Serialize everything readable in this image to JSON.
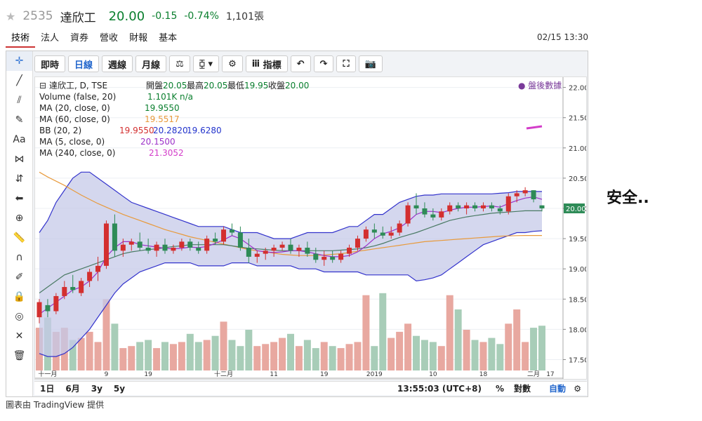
{
  "header": {
    "code": "2535",
    "name": "達欣工",
    "price": "20.00",
    "change": "-0.15",
    "pct": "-0.74%",
    "volume": "1,101張"
  },
  "tabs": [
    "技術",
    "法人",
    "資券",
    "營收",
    "財報",
    "基本"
  ],
  "datetime": "02/15 13:30",
  "toolbar": {
    "btn1": "即時",
    "btn2": "日線",
    "btn3": "週線",
    "btn4": "月線",
    "btn5": "指標"
  },
  "legend": {
    "main": "達欣工, D, TSE",
    "ohlc_open_label": "開盤",
    "ohlc_open": "20.05",
    "ohlc_high_label": "最高",
    "ohlc_high": "20.05",
    "ohlc_low_label": "最低",
    "ohlc_low": "19.95",
    "ohlc_close_label": "收盤",
    "ohlc_close": "20.00",
    "vol_label": "Volume (false, 20)",
    "vol_val": "1.101K n/a",
    "ma20_label": "MA (20, close, 0)",
    "ma20_val": "19.9550",
    "ma60_label": "MA (60, close, 0)",
    "ma60_val": "19.5517",
    "bb_label": "BB (20, 2)",
    "bb_val1": "19.9550",
    "bb_val2": "20.2820",
    "bb_val3": "19.6280",
    "ma5_label": "MA (5, close, 0)",
    "ma5_val": "20.1500",
    "ma240_label": "MA (240, close, 0)",
    "ma240_val": "21.3052",
    "afterhours": "● 盤後數據"
  },
  "bottom": {
    "r1": "1日",
    "r2": "6月",
    "r3": "3y",
    "r4": "5y",
    "time": "13:55:03 (UTC+8)",
    "pct": "%",
    "log": "對數",
    "auto": "自動"
  },
  "credit": "圖表由 TradingView 提供",
  "side_text": "安全..",
  "colors": {
    "up": "#d32f2f",
    "down": "#2e8b57",
    "bb_fill": "#c5c9e8",
    "bb_line": "#3333cc",
    "ma20": "#4a7a64",
    "ma60": "#e89a3c",
    "ma5": "#9b30c8"
  },
  "chart_data": {
    "type": "candlestick",
    "price_axis": {
      "min": 17.25,
      "max": 22.1,
      "ticks": [
        22.0,
        21.5,
        21.0,
        20.5,
        20.0,
        19.5,
        19.0,
        18.5,
        18.0,
        17.5
      ]
    },
    "last_price": "20.00",
    "x_labels": [
      "十一月",
      "9",
      "19",
      "十二月",
      "11",
      "19",
      "2019",
      "10",
      "18",
      "二月",
      "17"
    ],
    "candles": [
      [
        18.2,
        18.5,
        18.1,
        18.45
      ],
      [
        18.4,
        18.5,
        18.2,
        18.3
      ],
      [
        18.3,
        18.6,
        18.25,
        18.55
      ],
      [
        18.55,
        18.8,
        18.5,
        18.7
      ],
      [
        18.7,
        18.9,
        18.6,
        18.65
      ],
      [
        18.6,
        18.85,
        18.55,
        18.8
      ],
      [
        18.8,
        19.0,
        18.7,
        18.95
      ],
      [
        18.95,
        19.2,
        18.8,
        19.05
      ],
      [
        19.05,
        19.8,
        19.0,
        19.75
      ],
      [
        19.75,
        19.9,
        19.2,
        19.3
      ],
      [
        19.3,
        19.5,
        19.2,
        19.4
      ],
      [
        19.4,
        19.5,
        19.3,
        19.45
      ],
      [
        19.45,
        19.6,
        19.3,
        19.35
      ],
      [
        19.35,
        19.5,
        19.25,
        19.3
      ],
      [
        19.3,
        19.45,
        19.2,
        19.4
      ],
      [
        19.4,
        19.5,
        19.25,
        19.3
      ],
      [
        19.3,
        19.4,
        19.25,
        19.35
      ],
      [
        19.35,
        19.5,
        19.3,
        19.45
      ],
      [
        19.45,
        19.5,
        19.3,
        19.35
      ],
      [
        19.35,
        19.45,
        19.25,
        19.3
      ],
      [
        19.3,
        19.55,
        19.25,
        19.5
      ],
      [
        19.5,
        19.6,
        19.4,
        19.45
      ],
      [
        19.45,
        19.7,
        19.4,
        19.65
      ],
      [
        19.65,
        19.75,
        19.55,
        19.6
      ],
      [
        19.6,
        19.7,
        19.3,
        19.35
      ],
      [
        19.35,
        19.5,
        19.1,
        19.2
      ],
      [
        19.2,
        19.3,
        19.1,
        19.25
      ],
      [
        19.25,
        19.35,
        19.15,
        19.3
      ],
      [
        19.3,
        19.4,
        19.2,
        19.35
      ],
      [
        19.35,
        19.45,
        19.3,
        19.4
      ],
      [
        19.4,
        19.5,
        19.25,
        19.3
      ],
      [
        19.3,
        19.4,
        19.2,
        19.35
      ],
      [
        19.35,
        19.45,
        19.2,
        19.25
      ],
      [
        19.25,
        19.35,
        19.1,
        19.15
      ],
      [
        19.15,
        19.3,
        19.05,
        19.2
      ],
      [
        19.2,
        19.3,
        19.1,
        19.15
      ],
      [
        19.15,
        19.3,
        19.1,
        19.25
      ],
      [
        19.25,
        19.4,
        19.2,
        19.35
      ],
      [
        19.35,
        19.55,
        19.3,
        19.5
      ],
      [
        19.5,
        19.7,
        19.45,
        19.65
      ],
      [
        19.65,
        19.75,
        19.5,
        19.6
      ],
      [
        19.6,
        19.7,
        19.5,
        19.55
      ],
      [
        19.55,
        19.7,
        19.5,
        19.6
      ],
      [
        19.6,
        19.8,
        19.55,
        19.75
      ],
      [
        19.75,
        20.1,
        19.7,
        20.05
      ],
      [
        20.05,
        20.25,
        19.9,
        20.0
      ],
      [
        20.0,
        20.1,
        19.85,
        19.9
      ],
      [
        19.9,
        20.0,
        19.8,
        19.85
      ],
      [
        19.85,
        20.0,
        19.8,
        19.95
      ],
      [
        19.95,
        20.1,
        19.9,
        20.05
      ],
      [
        20.05,
        20.1,
        19.95,
        20.0
      ],
      [
        20.0,
        20.1,
        19.9,
        20.05
      ],
      [
        20.05,
        20.1,
        19.95,
        20.0
      ],
      [
        20.0,
        20.1,
        19.95,
        20.05
      ],
      [
        20.05,
        20.1,
        19.95,
        20.0
      ],
      [
        20.0,
        20.05,
        19.9,
        19.95
      ],
      [
        19.95,
        20.25,
        19.9,
        20.2
      ],
      [
        20.2,
        20.3,
        20.1,
        20.25
      ],
      [
        20.25,
        20.35,
        20.2,
        20.3
      ],
      [
        20.3,
        20.3,
        20.1,
        20.15
      ],
      [
        20.05,
        20.05,
        19.95,
        20.0
      ]
    ],
    "volumes": [
      1.05,
      1.3,
      0.95,
      1.05,
      0.75,
      0.8,
      0.95,
      0.7,
      1.75,
      1.15,
      0.55,
      0.6,
      0.7,
      0.75,
      0.55,
      0.7,
      0.65,
      0.7,
      0.9,
      0.7,
      0.75,
      0.85,
      1.2,
      0.75,
      0.6,
      1.0,
      0.6,
      0.65,
      0.7,
      0.8,
      0.9,
      0.6,
      0.75,
      0.55,
      0.7,
      0.6,
      0.55,
      0.65,
      0.7,
      1.85,
      0.6,
      1.9,
      0.8,
      0.95,
      1.15,
      0.85,
      0.75,
      0.7,
      0.6,
      1.85,
      1.5,
      1.0,
      0.75,
      0.7,
      0.8,
      0.65,
      1.15,
      1.5,
      0.7,
      1.05,
      1.1
    ],
    "bb_upper": [
      19.6,
      19.8,
      20.1,
      20.3,
      20.5,
      20.6,
      20.6,
      20.5,
      20.4,
      20.3,
      20.2,
      20.1,
      20.05,
      20.0,
      19.95,
      19.9,
      19.85,
      19.8,
      19.75,
      19.7,
      19.7,
      19.7,
      19.7,
      19.65,
      19.6,
      19.6,
      19.6,
      19.55,
      19.5,
      19.5,
      19.5,
      19.55,
      19.6,
      19.6,
      19.6,
      19.6,
      19.65,
      19.7,
      19.7,
      19.8,
      19.9,
      19.9,
      20.0,
      20.1,
      20.15,
      20.2,
      20.22,
      20.22,
      20.24,
      20.24,
      20.24,
      20.24,
      20.24,
      20.24,
      20.24,
      20.25,
      20.26,
      20.28,
      20.28,
      20.28,
      20.28
    ],
    "bb_lower": [
      17.6,
      17.55,
      17.55,
      17.6,
      17.7,
      17.85,
      18.0,
      18.2,
      18.4,
      18.6,
      18.75,
      18.85,
      18.95,
      19.0,
      19.05,
      19.1,
      19.1,
      19.1,
      19.1,
      19.05,
      19.05,
      19.05,
      19.05,
      19.1,
      19.1,
      19.1,
      19.05,
      19.05,
      19.05,
      19.05,
      19.05,
      19.0,
      19.0,
      19.0,
      18.95,
      18.95,
      18.95,
      18.95,
      18.95,
      18.9,
      18.9,
      18.9,
      18.9,
      18.9,
      18.9,
      18.8,
      18.82,
      18.85,
      18.9,
      19.0,
      19.1,
      19.2,
      19.3,
      19.4,
      19.45,
      19.5,
      19.55,
      19.6,
      19.6,
      19.62,
      19.63
    ],
    "ma20": [
      18.6,
      18.7,
      18.8,
      18.9,
      18.95,
      19.0,
      19.05,
      19.1,
      19.15,
      19.2,
      19.25,
      19.28,
      19.3,
      19.32,
      19.33,
      19.35,
      19.37,
      19.38,
      19.4,
      19.4,
      19.4,
      19.4,
      19.4,
      19.38,
      19.36,
      19.34,
      19.33,
      19.32,
      19.31,
      19.3,
      19.3,
      19.3,
      19.3,
      19.3,
      19.3,
      19.3,
      19.31,
      19.32,
      19.33,
      19.35,
      19.38,
      19.42,
      19.47,
      19.52,
      19.56,
      19.6,
      19.65,
      19.7,
      19.75,
      19.8,
      19.83,
      19.86,
      19.88,
      19.9,
      19.92,
      19.93,
      19.94,
      19.95,
      19.96,
      19.96,
      19.96
    ],
    "ma60": [
      20.6,
      20.52,
      20.45,
      20.38,
      20.3,
      20.22,
      20.15,
      20.08,
      20.02,
      19.96,
      19.9,
      19.85,
      19.8,
      19.75,
      19.7,
      19.65,
      19.61,
      19.57,
      19.53,
      19.5,
      19.47,
      19.44,
      19.41,
      19.38,
      19.35,
      19.32,
      19.3,
      19.28,
      19.26,
      19.24,
      19.23,
      19.22,
      19.22,
      19.22,
      19.23,
      19.24,
      19.25,
      19.27,
      19.29,
      19.31,
      19.33,
      19.35,
      19.37,
      19.39,
      19.41,
      19.43,
      19.45,
      19.46,
      19.47,
      19.48,
      19.49,
      19.5,
      19.51,
      19.52,
      19.53,
      19.54,
      19.545,
      19.55,
      19.552,
      19.552,
      19.5517
    ],
    "ma5": [
      18.25,
      18.35,
      18.45,
      18.55,
      18.65,
      18.7,
      18.8,
      18.95,
      19.2,
      19.35,
      19.45,
      19.45,
      19.4,
      19.38,
      19.36,
      19.34,
      19.33,
      19.34,
      19.36,
      19.35,
      19.37,
      19.42,
      19.48,
      19.55,
      19.5,
      19.4,
      19.3,
      19.28,
      19.27,
      19.28,
      19.3,
      19.3,
      19.28,
      19.25,
      19.22,
      19.2,
      19.2,
      19.22,
      19.28,
      19.38,
      19.5,
      19.58,
      19.62,
      19.68,
      19.78,
      19.9,
      19.95,
      19.95,
      19.93,
      19.97,
      20.0,
      20.02,
      20.02,
      20.03,
      20.04,
      20.02,
      20.08,
      20.13,
      20.17,
      20.19,
      20.15
    ],
    "ma240_value": 21.3052
  }
}
